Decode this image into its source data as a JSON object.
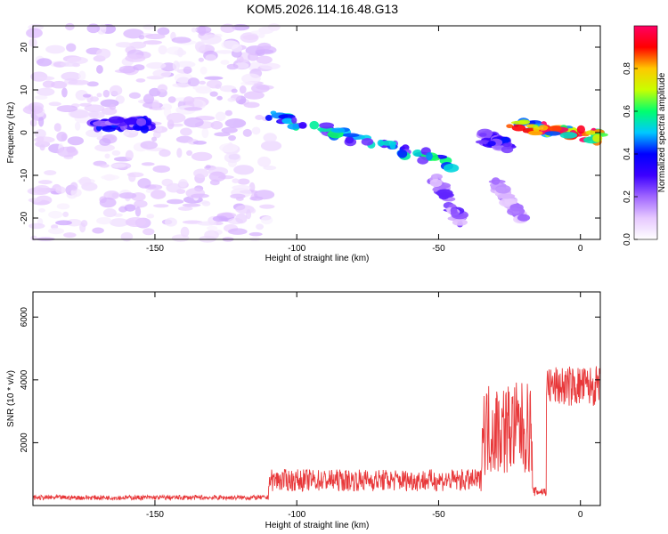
{
  "title": "KOM5.2026.114.16.48.G13",
  "colors": {
    "series": "#e8383a",
    "axis": "#000000",
    "colorbar_stops": [
      "#ffffff",
      "#e6c8ff",
      "#a066ff",
      "#3c00ff",
      "#0000ff",
      "#00c8ff",
      "#00ff6e",
      "#c8ff00",
      "#ffc800",
      "#ff0000",
      "#ff0064"
    ]
  },
  "chart_data": [
    {
      "type": "heatmap",
      "name": "spectrogram",
      "xlabel": "Height of straight line (km)",
      "ylabel": "Frequency (Hz)",
      "xlim": [
        -193,
        7
      ],
      "ylim": [
        -25,
        25
      ],
      "xticks": [
        -150,
        -100,
        -50,
        0
      ],
      "yticks": [
        -20,
        -10,
        0,
        10,
        20
      ],
      "colorbar": {
        "label": "Normalized spectral amplitude",
        "range": [
          0,
          1
        ],
        "ticks": [
          0.0,
          0.2,
          0.4,
          0.6,
          0.8
        ]
      },
      "features": [
        {
          "desc": "low-amplitude diffuse noise",
          "x_range": [
            -193,
            -108
          ],
          "y_range": [
            -25,
            25
          ],
          "amplitude": 0.08
        },
        {
          "desc": "feature near -160",
          "x_range": [
            -172,
            -152
          ],
          "y": [
            2,
            2
          ],
          "amplitude": 0.3
        },
        {
          "desc": "main descending streak",
          "x_range": [
            -110,
            -40
          ],
          "y": [
            4,
            -8
          ],
          "amplitude": 0.45
        },
        {
          "desc": "branch streak",
          "x_range": [
            -52,
            -42
          ],
          "y": [
            -10,
            -21
          ],
          "amplitude": 0.2
        },
        {
          "desc": "lower branch",
          "x_range": [
            -30,
            -20
          ],
          "y": [
            -12,
            -20
          ],
          "amplitude": 0.15
        },
        {
          "desc": "streak near -35 to -25",
          "x_range": [
            -35,
            -25
          ],
          "y": [
            -1,
            -3
          ],
          "amplitude": 0.3
        },
        {
          "desc": "strong streak toward 0",
          "x_range": [
            -25,
            7
          ],
          "y": [
            2,
            -1
          ],
          "amplitude": 0.8
        }
      ]
    },
    {
      "type": "line",
      "name": "snr",
      "xlabel": "Height of straight line (km)",
      "ylabel": "SNR (10 * v/v)",
      "xlim": [
        -193,
        7
      ],
      "ylim": [
        0,
        6800
      ],
      "xticks": [
        -150,
        -100,
        -50,
        0
      ],
      "yticks": [
        2000,
        4000,
        6000
      ],
      "segments": [
        {
          "x_range": [
            -193,
            -110
          ],
          "base": 230,
          "noise": 150
        },
        {
          "x_range": [
            -110,
            -35
          ],
          "base": 700,
          "noise": 700
        },
        {
          "x_range": [
            -35,
            -17
          ],
          "base": 2000,
          "noise": 3000
        },
        {
          "x_range": [
            -17,
            -12
          ],
          "base": 400,
          "noise": 300
        },
        {
          "x_range": [
            -12,
            7
          ],
          "base": 3600,
          "noise": 1300
        }
      ]
    }
  ]
}
